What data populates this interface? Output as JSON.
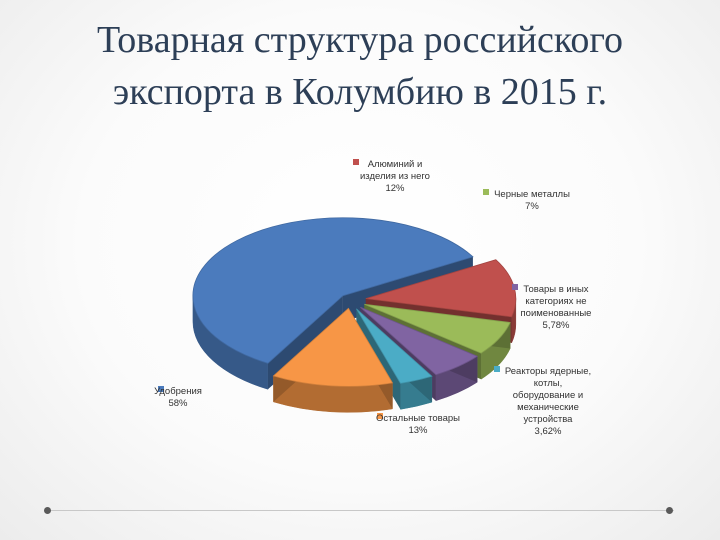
{
  "title_line1": "Товарная структура российского",
  "title_line2": "экспорта в Колумбию в 2015 г.",
  "chart_data": {
    "type": "pie",
    "title": "",
    "slices": [
      {
        "label_lines": [
          "Удобрения"
        ],
        "value_label": "58%",
        "value": 58,
        "color": "#4b7bbd"
      },
      {
        "label_lines": [
          "Алюминий и",
          "изделия из него"
        ],
        "value_label": "12%",
        "value": 12,
        "color": "#c0504d"
      },
      {
        "label_lines": [
          "Черные металлы"
        ],
        "value_label": "7%",
        "value": 7,
        "color": "#9bbb59"
      },
      {
        "label_lines": [
          "Товары в иных",
          "категориях не",
          "поименованные"
        ],
        "value_label": "5,78%",
        "value": 5.78,
        "color": "#8064a2"
      },
      {
        "label_lines": [
          "Реакторы ядерные,",
          "котлы,",
          "оборудование и",
          "механические",
          "устройства"
        ],
        "value_label": "3,62%",
        "value": 3.62,
        "color": "#4bacc6"
      },
      {
        "label_lines": [
          "Остальные товары"
        ],
        "value_label": "13%",
        "value": 13,
        "color": "#f79646"
      }
    ]
  }
}
